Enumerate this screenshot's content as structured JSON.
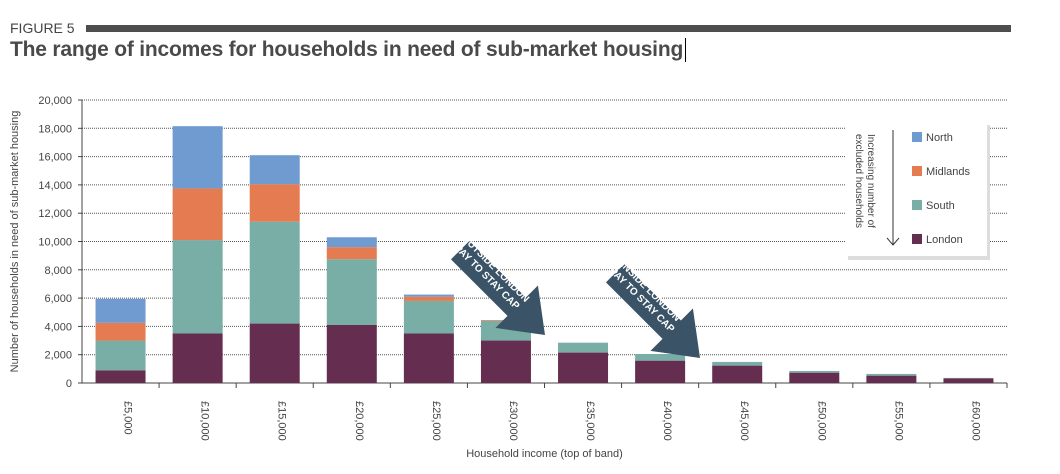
{
  "figure_label": "FIGURE 5",
  "title": "The range of incomes for households in need of sub-market housing",
  "chart_data": {
    "type": "bar",
    "stacked": true,
    "xlabel": "Household income (top of band)",
    "ylabel": "Number of households in need of sub-market housing",
    "ylim": [
      0,
      20000
    ],
    "yticks": [
      0,
      2000,
      4000,
      6000,
      8000,
      10000,
      12000,
      14000,
      16000,
      18000,
      20000
    ],
    "ytick_labels": [
      "0",
      "2,000",
      "4,000",
      "6,000",
      "8,000",
      "10,000",
      "12,000",
      "14,000",
      "16,000",
      "18,000",
      "20,000"
    ],
    "grid": true,
    "categories": [
      "£5,000",
      "£10,000",
      "£15,000",
      "£20,000",
      "£25,000",
      "£30,000",
      "£35,000",
      "£40,000",
      "£45,000",
      "£50,000",
      "£55,000",
      "£60,000"
    ],
    "series": [
      {
        "name": "London",
        "color": "#652d4f",
        "values": [
          900,
          3500,
          4200,
          4100,
          3500,
          3000,
          2150,
          1580,
          1230,
          730,
          520,
          330
        ]
      },
      {
        "name": "South",
        "color": "#78aea6",
        "values": [
          2100,
          6600,
          7200,
          4650,
          2300,
          1400,
          700,
          470,
          260,
          120,
          120,
          30
        ]
      },
      {
        "name": "Midlands",
        "color": "#e57b50",
        "values": [
          1250,
          3650,
          2650,
          850,
          300,
          50,
          0,
          0,
          0,
          0,
          0,
          0
        ]
      },
      {
        "name": "North",
        "color": "#6f9bd1",
        "values": [
          1700,
          4400,
          2050,
          700,
          150,
          0,
          0,
          0,
          0,
          0,
          0,
          0
        ]
      }
    ],
    "legend": {
      "placement": "top-right",
      "order": [
        "North",
        "Midlands",
        "South",
        "London"
      ],
      "note": "Increasing number of excluded households"
    },
    "annotations": [
      {
        "line1": "PAY TO STAY CAP",
        "line2": "OUTSIDE LONDON",
        "points_to": "£35,000"
      },
      {
        "line1": "PAY TO STAY CAP",
        "line2": "INSIDE LONDON",
        "points_to": "£45,000"
      }
    ],
    "arrow_color": "#3a5367"
  }
}
